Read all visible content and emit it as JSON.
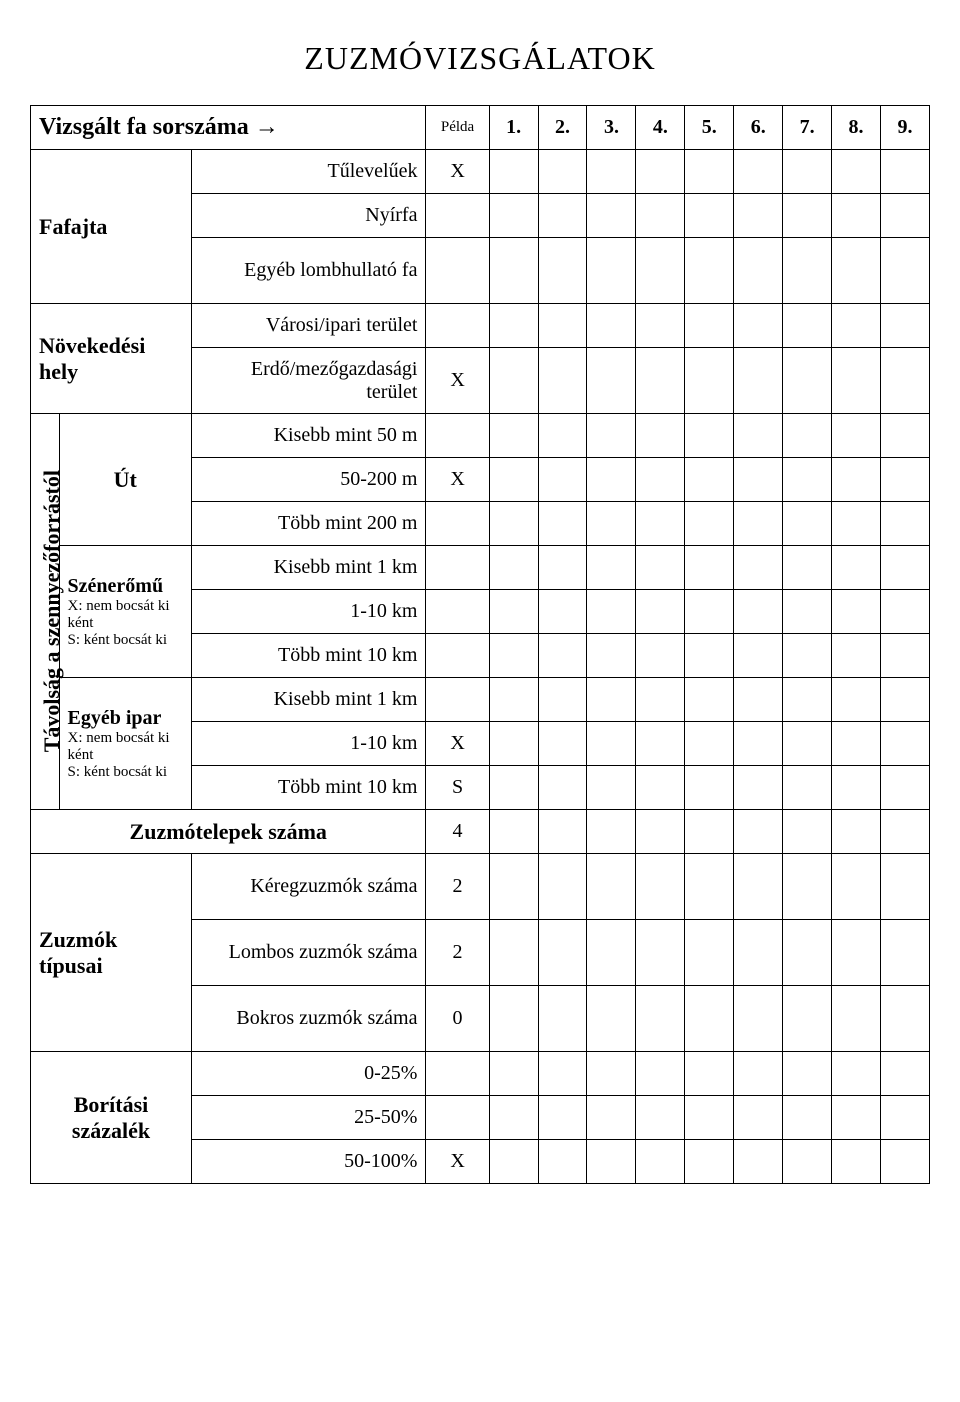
{
  "title": "ZUZMÓVIZSGÁLATOK",
  "header": {
    "vizsgalt": "Vizsgált fa sorszáma →",
    "pelda": "Példa",
    "cols": [
      "1.",
      "2.",
      "3.",
      "4.",
      "5.",
      "6.",
      "7.",
      "8.",
      "9."
    ]
  },
  "fafajta": {
    "label": "Fafajta",
    "rows": [
      {
        "name": "Tűlevelűek",
        "pelda": "X"
      },
      {
        "name": "Nyírfa",
        "pelda": ""
      },
      {
        "name": "Egyéb lombhullató fa",
        "pelda": ""
      }
    ]
  },
  "novekedesi": {
    "label": "Növekedési hely",
    "rows": [
      {
        "name": "Városi/ipari terület",
        "pelda": ""
      },
      {
        "name": "Erdő/mezőgazdasági terület",
        "pelda": "X"
      }
    ]
  },
  "tavolsag": {
    "label": "Távolság a szennyezőforrástól",
    "ut": {
      "label": "Út",
      "rows": [
        {
          "name": "Kisebb mint 50 m",
          "pelda": ""
        },
        {
          "name": "50-200 m",
          "pelda": "X"
        },
        {
          "name": "Több mint 200 m",
          "pelda": ""
        }
      ]
    },
    "szeneromu": {
      "label": "Szénerőmű",
      "sub1": "X: nem bocsát ki ként",
      "sub2": "S: ként bocsát ki",
      "rows": [
        {
          "name": "Kisebb mint 1 km",
          "pelda": ""
        },
        {
          "name": "1-10 km",
          "pelda": ""
        },
        {
          "name": "Több mint 10 km",
          "pelda": ""
        }
      ]
    },
    "egyebipar": {
      "label": "Egyéb ipar",
      "sub1": "X: nem bocsát ki ként",
      "sub2": "S: ként bocsát ki",
      "rows": [
        {
          "name": "Kisebb mint 1 km",
          "pelda": ""
        },
        {
          "name": "1-10 km",
          "pelda": "X"
        },
        {
          "name": "Több mint 10 km",
          "pelda": "S"
        }
      ]
    }
  },
  "zuzmotelepek": {
    "label": "Zuzmótelepek száma",
    "pelda": "4"
  },
  "zuzmok_tipusai": {
    "label": "Zuzmók típusai",
    "rows": [
      {
        "name": "Kéregzuzmók száma",
        "pelda": "2"
      },
      {
        "name": "Lombos zuzmók száma",
        "pelda": "2"
      },
      {
        "name": "Bokros zuzmók száma",
        "pelda": "0"
      }
    ]
  },
  "boritasi": {
    "label": "Borítási százalék",
    "rows": [
      {
        "name": "0-25%",
        "pelda": ""
      },
      {
        "name": "25-50%",
        "pelda": ""
      },
      {
        "name": "50-100%",
        "pelda": "X"
      }
    ]
  }
}
